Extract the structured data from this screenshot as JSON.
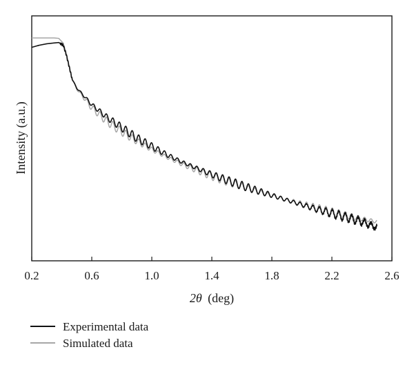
{
  "chart_data": {
    "type": "line",
    "title": "",
    "xlabel_var": "2θ",
    "xlabel_unit": "(deg)",
    "ylabel": "Intensity (a.u.)",
    "xlim": [
      0.2,
      2.6
    ],
    "ylim": [
      0,
      1
    ],
    "xticks": [
      0.2,
      0.6,
      1.0,
      1.4,
      1.8,
      2.2,
      2.6
    ],
    "xtick_labels": [
      "0.2",
      "0.6",
      "1.0",
      "1.4",
      "1.8",
      "2.2",
      "2.6"
    ],
    "yticks_shown": false,
    "grid": false,
    "legend_position": "below",
    "series": [
      {
        "name": "Experimental data",
        "color": "#111111",
        "plateau_end": 0.39,
        "critical_angle": 0.44,
        "fringe_period": 0.043,
        "x": [
          0.2,
          0.25,
          0.3,
          0.35,
          0.38,
          0.41,
          0.43,
          0.45,
          0.47,
          0.5,
          0.6,
          0.7,
          0.8,
          0.9,
          1.0,
          1.1,
          1.2,
          1.3,
          1.4,
          1.5,
          1.6,
          1.7,
          1.8,
          1.9,
          2.0,
          2.1,
          2.2,
          2.3,
          2.4,
          2.5
        ],
        "y": [
          0.955,
          0.965,
          0.972,
          0.976,
          0.978,
          0.965,
          0.92,
          0.86,
          0.8,
          0.76,
          0.68,
          0.62,
          0.57,
          0.52,
          0.48,
          0.44,
          0.405,
          0.375,
          0.345,
          0.318,
          0.292,
          0.268,
          0.245,
          0.222,
          0.2,
          0.178,
          0.158,
          0.138,
          0.118,
          0.09
        ]
      },
      {
        "name": "Simulated data",
        "color": "#a6a6a6",
        "plateau_end": 0.38,
        "critical_angle": 0.44,
        "fringe_period": 0.043,
        "x": [
          0.2,
          0.25,
          0.3,
          0.35,
          0.38,
          0.41,
          0.43,
          0.45,
          0.47,
          0.5,
          0.6,
          0.7,
          0.8,
          0.9,
          1.0,
          1.1,
          1.2,
          1.3,
          1.4,
          1.5,
          1.6,
          1.7,
          1.8,
          1.9,
          2.0,
          2.1,
          2.2,
          2.3,
          2.4,
          2.5
        ],
        "y": [
          1.0,
          1.0,
          1.0,
          1.0,
          0.998,
          0.975,
          0.925,
          0.865,
          0.8,
          0.755,
          0.665,
          0.6,
          0.55,
          0.505,
          0.465,
          0.428,
          0.395,
          0.365,
          0.337,
          0.312,
          0.288,
          0.265,
          0.243,
          0.222,
          0.202,
          0.183,
          0.165,
          0.148,
          0.132,
          0.118
        ]
      }
    ]
  }
}
